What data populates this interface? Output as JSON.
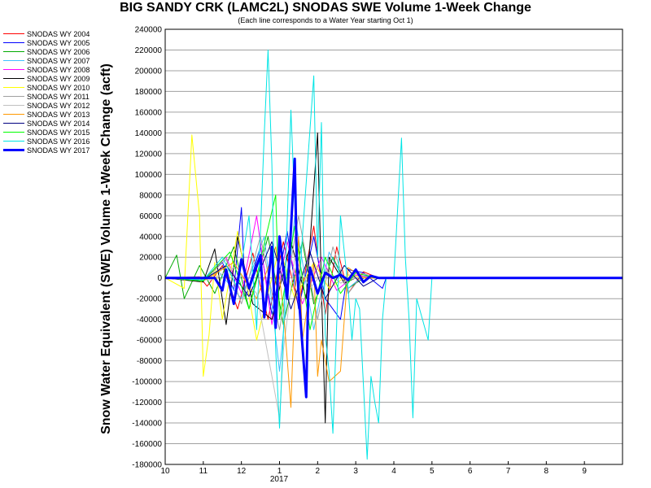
{
  "chart_data": {
    "type": "line",
    "title": "BIG SANDY CRK (LAMC2L) SNODAS SWE Volume 1-Week Change",
    "subtitle": "(Each line corresponds to a Water Year starting Oct 1)",
    "ylabel": "Snow Water Equivalent (SWE) Volume 1-Week Change (acft)",
    "xlabel": "",
    "ylim": [
      -180000,
      240000
    ],
    "yticks": [
      -180000,
      -160000,
      -140000,
      -120000,
      -100000,
      -80000,
      -60000,
      -40000,
      -20000,
      0,
      20000,
      40000,
      60000,
      80000,
      100000,
      120000,
      140000,
      160000,
      180000,
      200000,
      220000,
      240000
    ],
    "xlim": [
      0,
      12
    ],
    "x_unit": "months since Oct 1",
    "x_tick_labels": [
      "10",
      "11",
      "12",
      "1",
      "2",
      "3",
      "4",
      "5",
      "6",
      "7",
      "8",
      "9"
    ],
    "x_year_label": "2017",
    "grid": "horizontal",
    "legend_position": "left",
    "series": [
      {
        "name": "SNODAS WY 2004",
        "color": "#ff0000",
        "width": 1,
        "points": [
          [
            0,
            0
          ],
          [
            0.9,
            1000
          ],
          [
            1.1,
            -8000
          ],
          [
            1.5,
            12000
          ],
          [
            1.9,
            -30000
          ],
          [
            2.3,
            24000
          ],
          [
            2.7,
            -40000
          ],
          [
            3.1,
            35000
          ],
          [
            3.5,
            -28000
          ],
          [
            3.9,
            50000
          ],
          [
            4.2,
            -35000
          ],
          [
            4.5,
            30000
          ],
          [
            4.8,
            -15000
          ],
          [
            5.2,
            6000
          ],
          [
            5.6,
            0
          ],
          [
            12,
            0
          ]
        ]
      },
      {
        "name": "SNODAS WY 2005",
        "color": "#0000ff",
        "width": 1,
        "points": [
          [
            0,
            0
          ],
          [
            1,
            -3000
          ],
          [
            1.5,
            15000
          ],
          [
            1.8,
            -12000
          ],
          [
            2.0,
            68000
          ],
          [
            2.1,
            -20000
          ],
          [
            2.5,
            30000
          ],
          [
            2.8,
            -35000
          ],
          [
            3.2,
            45000
          ],
          [
            3.5,
            -30000
          ],
          [
            3.9,
            40000
          ],
          [
            4.2,
            -20000
          ],
          [
            4.6,
            -40000
          ],
          [
            4.8,
            8000
          ],
          [
            5.2,
            5000
          ],
          [
            5.7,
            -10000
          ],
          [
            5.8,
            0
          ],
          [
            12,
            0
          ]
        ]
      },
      {
        "name": "SNODAS WY 2006",
        "color": "#00aa00",
        "width": 1,
        "points": [
          [
            0,
            0
          ],
          [
            0.3,
            22000
          ],
          [
            0.5,
            -20000
          ],
          [
            0.9,
            12000
          ],
          [
            1.3,
            -15000
          ],
          [
            1.8,
            30000
          ],
          [
            2.2,
            -30000
          ],
          [
            2.7,
            40000
          ],
          [
            3.1,
            -45000
          ],
          [
            3.6,
            35000
          ],
          [
            3.9,
            -25000
          ],
          [
            4.4,
            20000
          ],
          [
            4.8,
            -10000
          ],
          [
            5.3,
            2000
          ],
          [
            5.5,
            0
          ],
          [
            12,
            0
          ]
        ]
      },
      {
        "name": "SNODAS WY 2007",
        "color": "#40c0ff",
        "width": 1,
        "points": [
          [
            0,
            0
          ],
          [
            0.8,
            -2000
          ],
          [
            1.4,
            6000
          ],
          [
            2.0,
            -20000
          ],
          [
            2.6,
            40000
          ],
          [
            3.0,
            -90000
          ],
          [
            3.4,
            60000
          ],
          [
            3.9,
            -50000
          ],
          [
            4.3,
            25000
          ],
          [
            4.8,
            -10000
          ],
          [
            5.2,
            2000
          ],
          [
            5.5,
            0
          ],
          [
            12,
            0
          ]
        ]
      },
      {
        "name": "SNODAS WY 2008",
        "color": "#ff00ff",
        "width": 1,
        "points": [
          [
            0,
            0
          ],
          [
            1.0,
            -2000
          ],
          [
            1.6,
            20000
          ],
          [
            2.0,
            -15000
          ],
          [
            2.4,
            60000
          ],
          [
            2.8,
            -45000
          ],
          [
            3.2,
            35000
          ],
          [
            3.6,
            -25000
          ],
          [
            4.1,
            20000
          ],
          [
            4.5,
            -12000
          ],
          [
            5.0,
            3000
          ],
          [
            5.4,
            0
          ],
          [
            12,
            0
          ]
        ]
      },
      {
        "name": "SNODAS WY 2009",
        "color": "#000000",
        "width": 1,
        "points": [
          [
            0,
            0
          ],
          [
            1.0,
            -4000
          ],
          [
            1.3,
            28000
          ],
          [
            1.6,
            -45000
          ],
          [
            1.9,
            40000
          ],
          [
            2.3,
            -25000
          ],
          [
            2.8,
            -40000
          ],
          [
            3.3,
            35000
          ],
          [
            3.7,
            -20000
          ],
          [
            4.0,
            140000
          ],
          [
            4.1,
            -10000
          ],
          [
            4.2,
            -140000
          ],
          [
            4.3,
            20000
          ],
          [
            4.7,
            -5000
          ],
          [
            5.0,
            0
          ],
          [
            12,
            0
          ]
        ]
      },
      {
        "name": "SNODAS WY 2010",
        "color": "#ffff00",
        "width": 1,
        "points": [
          [
            0,
            0
          ],
          [
            0.5,
            -10000
          ],
          [
            0.7,
            138000
          ],
          [
            0.9,
            60000
          ],
          [
            1.0,
            -95000
          ],
          [
            1.15,
            -55000
          ],
          [
            1.3,
            15000
          ],
          [
            1.5,
            -40000
          ],
          [
            1.9,
            45000
          ],
          [
            2.4,
            -60000
          ],
          [
            3.0,
            30000
          ],
          [
            3.4,
            -20000
          ],
          [
            3.9,
            15000
          ],
          [
            4.3,
            -10000
          ],
          [
            4.8,
            3000
          ],
          [
            5.3,
            0
          ],
          [
            12,
            0
          ]
        ]
      },
      {
        "name": "SNODAS WY 2011",
        "color": "#a0a0a0",
        "width": 1,
        "points": [
          [
            0,
            0
          ],
          [
            1.0,
            -3000
          ],
          [
            1.6,
            18000
          ],
          [
            2.0,
            -25000
          ],
          [
            2.5,
            40000
          ],
          [
            3.0,
            -50000
          ],
          [
            3.5,
            60000
          ],
          [
            4.0,
            -40000
          ],
          [
            4.4,
            30000
          ],
          [
            4.8,
            -15000
          ],
          [
            5.2,
            4000
          ],
          [
            5.6,
            0
          ],
          [
            12,
            0
          ]
        ]
      },
      {
        "name": "SNODAS WY 2012",
        "color": "#c0c0c0",
        "width": 1,
        "points": [
          [
            0,
            0
          ],
          [
            1.2,
            -2000
          ],
          [
            1.8,
            10000
          ],
          [
            2.4,
            -15000
          ],
          [
            3.0,
            -135000
          ],
          [
            3.1,
            -70000
          ],
          [
            3.4,
            20000
          ],
          [
            3.8,
            -10000
          ],
          [
            4.2,
            8000
          ],
          [
            4.6,
            -5000
          ],
          [
            5.0,
            0
          ],
          [
            12,
            0
          ]
        ]
      },
      {
        "name": "SNODAS WY 2013",
        "color": "#ff9900",
        "width": 1,
        "points": [
          [
            0,
            0
          ],
          [
            1.0,
            -3000
          ],
          [
            1.8,
            15000
          ],
          [
            2.4,
            -20000
          ],
          [
            2.9,
            30000
          ],
          [
            3.1,
            -30000
          ],
          [
            3.3,
            -125000
          ],
          [
            3.4,
            -20000
          ],
          [
            3.5,
            40000
          ],
          [
            3.6,
            -60000
          ],
          [
            3.9,
            15000
          ],
          [
            4.0,
            -95000
          ],
          [
            4.1,
            -60000
          ],
          [
            4.3,
            -100000
          ],
          [
            4.6,
            -90000
          ],
          [
            4.8,
            10000
          ],
          [
            5.2,
            0
          ],
          [
            12,
            0
          ]
        ]
      },
      {
        "name": "SNODAS WY 2014",
        "color": "#000080",
        "width": 1,
        "points": [
          [
            0,
            0
          ],
          [
            1.0,
            -2000
          ],
          [
            1.6,
            12000
          ],
          [
            2.2,
            -18000
          ],
          [
            2.8,
            35000
          ],
          [
            3.3,
            -30000
          ],
          [
            3.8,
            25000
          ],
          [
            4.2,
            -20000
          ],
          [
            4.7,
            12000
          ],
          [
            5.2,
            -8000
          ],
          [
            5.6,
            0
          ],
          [
            12,
            0
          ]
        ]
      },
      {
        "name": "SNODAS WY 2015",
        "color": "#00ff00",
        "width": 1,
        "points": [
          [
            0,
            0
          ],
          [
            1.0,
            -3000
          ],
          [
            1.7,
            25000
          ],
          [
            2.2,
            -30000
          ],
          [
            2.9,
            80000
          ],
          [
            3.0,
            -40000
          ],
          [
            3.4,
            50000
          ],
          [
            3.8,
            -50000
          ],
          [
            4.2,
            20000
          ],
          [
            4.6,
            -15000
          ],
          [
            5.0,
            5000
          ],
          [
            5.5,
            0
          ],
          [
            12,
            0
          ]
        ]
      },
      {
        "name": "SNODAS WY 2016",
        "color": "#00e5e5",
        "width": 1,
        "points": [
          [
            0,
            0
          ],
          [
            1.0,
            -2000
          ],
          [
            1.5,
            20000
          ],
          [
            1.9,
            -10000
          ],
          [
            2.2,
            60000
          ],
          [
            2.4,
            -50000
          ],
          [
            2.6,
            140000
          ],
          [
            2.7,
            220000
          ],
          [
            2.8,
            110000
          ],
          [
            2.9,
            -70000
          ],
          [
            3.0,
            -145000
          ],
          [
            3.1,
            -55000
          ],
          [
            3.3,
            162000
          ],
          [
            3.5,
            -20000
          ],
          [
            3.6,
            40000
          ],
          [
            3.9,
            195000
          ],
          [
            4.0,
            20000
          ],
          [
            4.1,
            150000
          ],
          [
            4.2,
            -55000
          ],
          [
            4.3,
            -90000
          ],
          [
            4.4,
            -150000
          ],
          [
            4.6,
            60000
          ],
          [
            4.8,
            -10000
          ],
          [
            4.9,
            -60000
          ],
          [
            5.0,
            -20000
          ],
          [
            5.1,
            -30000
          ],
          [
            5.3,
            -175000
          ],
          [
            5.4,
            -95000
          ],
          [
            5.5,
            -120000
          ],
          [
            5.6,
            -140000
          ],
          [
            5.7,
            -40000
          ],
          [
            5.8,
            0
          ],
          [
            6.0,
            0
          ],
          [
            6.2,
            135000
          ],
          [
            6.3,
            20000
          ],
          [
            6.4,
            -40000
          ],
          [
            6.5,
            -135000
          ],
          [
            6.6,
            -20000
          ],
          [
            6.9,
            -60000
          ],
          [
            7.0,
            0
          ],
          [
            12,
            0
          ]
        ]
      },
      {
        "name": "SNODAS WY 2017",
        "color": "#0000ff",
        "width": 3,
        "points": [
          [
            0,
            0
          ],
          [
            1.3,
            0
          ],
          [
            1.5,
            -12000
          ],
          [
            1.6,
            8000
          ],
          [
            1.8,
            -25000
          ],
          [
            2.0,
            18000
          ],
          [
            2.2,
            -10000
          ],
          [
            2.5,
            22000
          ],
          [
            2.6,
            -38000
          ],
          [
            2.8,
            30000
          ],
          [
            2.9,
            -48000
          ],
          [
            3.0,
            40000
          ],
          [
            3.2,
            -20000
          ],
          [
            3.4,
            115000
          ],
          [
            3.45,
            20000
          ],
          [
            3.5,
            -15000
          ],
          [
            3.7,
            -115000
          ],
          [
            3.75,
            -20000
          ],
          [
            3.8,
            10000
          ],
          [
            4.0,
            -15000
          ],
          [
            4.2,
            5000
          ],
          [
            4.4,
            0
          ],
          [
            4.6,
            3000
          ],
          [
            4.8,
            -2000
          ],
          [
            5.0,
            8000
          ],
          [
            5.2,
            -4000
          ],
          [
            5.4,
            2000
          ],
          [
            5.6,
            0
          ],
          [
            12,
            0
          ]
        ]
      }
    ]
  }
}
